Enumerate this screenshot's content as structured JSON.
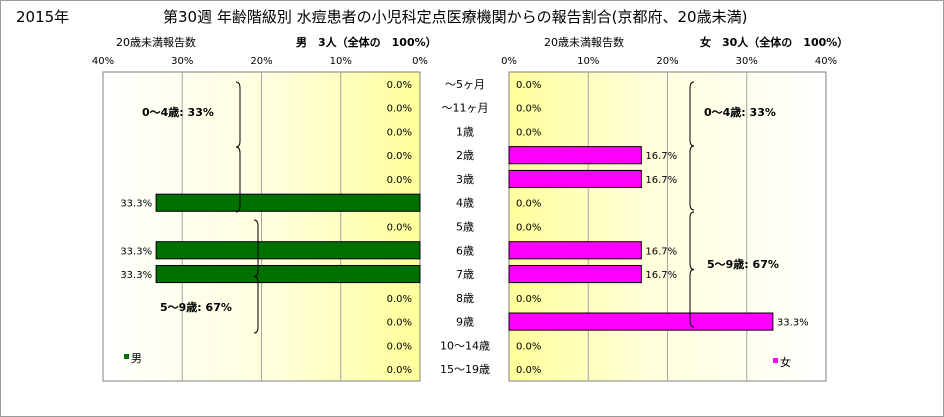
{
  "header": {
    "year": "2015年",
    "title": "第30週 年齢階級別 水痘患者の小児科定点医療機関からの報告割合(京都府、20歳未満)"
  },
  "chart_data": [
    {
      "type": "bar",
      "orientation": "horizontal",
      "direction": "right-to-left",
      "side": "male",
      "sublabel": "20歳未満報告数",
      "title": "男　3人（全体の　100%）",
      "legend": "男",
      "legend_position": "bottom-left",
      "xlim": [
        0,
        40
      ],
      "ticks": [
        "0%",
        "10%",
        "20%",
        "30%",
        "40%"
      ],
      "grid": true,
      "categories": [
        "～5ヶ月",
        "～11ヶ月",
        "1歳",
        "2歳",
        "3歳",
        "4歳",
        "5歳",
        "6歳",
        "7歳",
        "8歳",
        "9歳",
        "10～14歳",
        "15～19歳"
      ],
      "values": [
        0,
        0,
        0,
        0,
        0,
        33.3,
        0,
        33.3,
        33.3,
        0,
        0,
        0,
        0
      ],
      "value_labels": [
        "0.0%",
        "0.0%",
        "0.0%",
        "0.0%",
        "0.0%",
        "33.3%",
        "0.0%",
        "33.3%",
        "33.3%",
        "0.0%",
        "0.0%",
        "0.0%",
        "0.0%"
      ],
      "color": "#007000",
      "annotations": [
        {
          "text": "0～4歳: 33%",
          "from": 0,
          "to": 5
        },
        {
          "text": "5～9歳: 67%",
          "from": 6,
          "to": 10
        }
      ]
    },
    {
      "type": "bar",
      "orientation": "horizontal",
      "direction": "left-to-right",
      "side": "female",
      "sublabel": "20歳未満報告数",
      "title": "女　30人（全体の　100%）",
      "legend": "女",
      "legend_position": "bottom-right",
      "xlim": [
        0,
        40
      ],
      "ticks": [
        "0%",
        "10%",
        "20%",
        "30%",
        "40%"
      ],
      "grid": true,
      "categories": [
        "～5ヶ月",
        "～11ヶ月",
        "1歳",
        "2歳",
        "3歳",
        "4歳",
        "5歳",
        "6歳",
        "7歳",
        "8歳",
        "9歳",
        "10～14歳",
        "15～19歳"
      ],
      "values": [
        0,
        0,
        0,
        16.7,
        16.7,
        0,
        0,
        16.7,
        16.7,
        0,
        33.3,
        0,
        0
      ],
      "value_labels": [
        "0.0%",
        "0.0%",
        "0.0%",
        "16.7%",
        "16.7%",
        "0.0%",
        "0.0%",
        "16.7%",
        "16.7%",
        "0.0%",
        "33.3%",
        "0.0%",
        "0.0%"
      ],
      "color": "#ff00ff",
      "annotations": [
        {
          "text": "0～4歳: 33%",
          "from": 0,
          "to": 4
        },
        {
          "text": "5～9歳: 67%",
          "from": 5,
          "to": 10
        }
      ]
    }
  ]
}
